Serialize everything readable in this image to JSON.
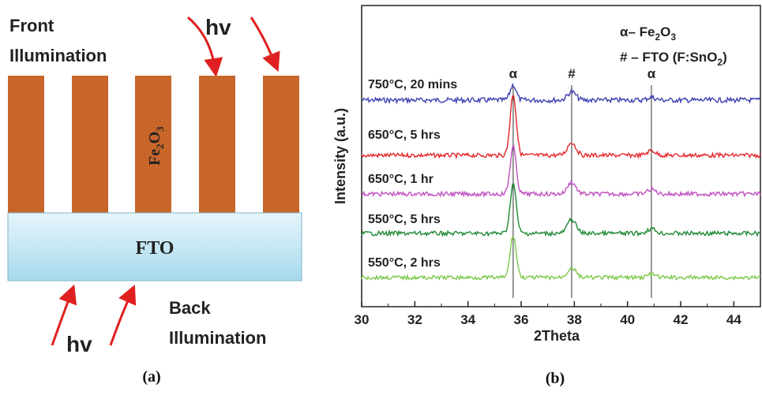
{
  "panel_a": {
    "front_label_1": "Front",
    "front_label_2": "Illumination",
    "back_label_1": "Back",
    "back_label_2": "Illumination",
    "photon_label": "hv",
    "nanorod_label_main": "Fe",
    "nanorod_label_sub1": "2",
    "nanorod_label_mid": "O",
    "nanorod_label_sub2": "3",
    "substrate_label": "FTO",
    "caption": "(a)",
    "colors": {
      "nanorod": "#c8662a",
      "substrate_top": "#e4f4fa",
      "substrate_bottom": "#a8dcee",
      "arrow": "#e02020"
    }
  },
  "panel_b": {
    "caption": "(b)",
    "chart_data": {
      "type": "line",
      "xlabel": "2Theta",
      "ylabel": "Intensity (a.u.)",
      "xlim": [
        30,
        45
      ],
      "x_ticks": [
        "30",
        "32",
        "34",
        "36",
        "38",
        "40",
        "42",
        "44"
      ],
      "legend": {
        "alpha_prefix": "α– Fe",
        "alpha_sub1": "2",
        "alpha_mid": "O",
        "alpha_sub2": "3",
        "fto_prefix": "# – FTO (F:SnO",
        "fto_sub": "2",
        "fto_suffix": ")"
      },
      "peak_markers": [
        {
          "label": "α",
          "x": 35.7
        },
        {
          "label": "#",
          "x": 37.9
        },
        {
          "label": "α",
          "x": 40.9
        }
      ],
      "series": [
        {
          "name": "750°C, 20 mins",
          "color": "#3b3fb0",
          "peaks": [
            0.55,
            0.3,
            0.1
          ]
        },
        {
          "name": "650°C, 5 hrs",
          "color": "#e5262a",
          "peaks": [
            2.6,
            0.55,
            0.2
          ]
        },
        {
          "name": "650°C, 1 hr",
          "color": "#c050c0",
          "peaks": [
            2.0,
            0.5,
            0.2
          ]
        },
        {
          "name": "550°C, 5 hrs",
          "color": "#1f8a34",
          "peaks": [
            2.1,
            0.6,
            0.2
          ]
        },
        {
          "name": "550°C, 2 hrs",
          "color": "#7cc84a",
          "peaks": [
            1.9,
            0.45,
            0.15
          ]
        }
      ]
    }
  }
}
